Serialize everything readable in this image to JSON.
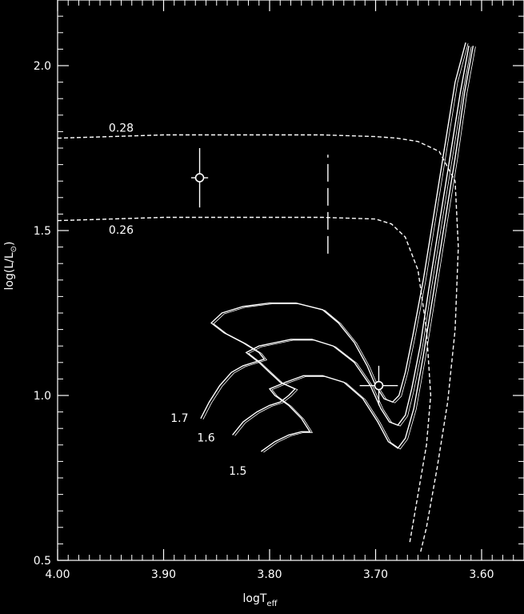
{
  "chart_data": {
    "type": "line",
    "xlabel": "logT",
    "xlabel_sub": "eff",
    "ylabel": "log(L/L",
    "ylabel_sub": "⊙",
    "ylabel_close": ")",
    "xlim": [
      4.0,
      3.55
    ],
    "ylim": [
      0.5,
      2.2
    ],
    "x_ticks": [
      {
        "value": 4.0,
        "label": "4.00"
      },
      {
        "value": 3.9,
        "label": "3.90"
      },
      {
        "value": 3.8,
        "label": "3.80"
      },
      {
        "value": 3.7,
        "label": "3.70"
      },
      {
        "value": 3.6,
        "label": "3.60"
      }
    ],
    "y_ticks": [
      {
        "value": 0.5,
        "label": "0.5"
      },
      {
        "value": 1.0,
        "label": "1.0"
      },
      {
        "value": 1.5,
        "label": "1.5"
      },
      {
        "value": 2.0,
        "label": "2.0"
      }
    ],
    "grid": false,
    "colors": {
      "background": "#000000",
      "foreground": "#ffffff"
    },
    "series": [
      {
        "name": "1.7",
        "style": "solid",
        "points": [
          [
            3.865,
            0.93
          ],
          [
            3.857,
            0.98
          ],
          [
            3.847,
            1.03
          ],
          [
            3.836,
            1.07
          ],
          [
            3.825,
            1.09
          ],
          [
            3.815,
            1.1
          ],
          [
            3.805,
            1.11
          ],
          [
            3.81,
            1.13
          ],
          [
            3.825,
            1.16
          ],
          [
            3.843,
            1.19
          ],
          [
            3.855,
            1.22
          ],
          [
            3.845,
            1.25
          ],
          [
            3.825,
            1.27
          ],
          [
            3.8,
            1.28
          ],
          [
            3.775,
            1.28
          ],
          [
            3.75,
            1.26
          ],
          [
            3.735,
            1.22
          ],
          [
            3.72,
            1.16
          ],
          [
            3.708,
            1.09
          ],
          [
            3.7,
            1.03
          ],
          [
            3.692,
            0.99
          ],
          [
            3.684,
            0.98
          ],
          [
            3.678,
            1.0
          ],
          [
            3.672,
            1.07
          ],
          [
            3.665,
            1.18
          ],
          [
            3.655,
            1.35
          ],
          [
            3.645,
            1.55
          ],
          [
            3.635,
            1.75
          ],
          [
            3.625,
            1.95
          ],
          [
            3.615,
            2.07
          ]
        ]
      },
      {
        "name": "1.6",
        "style": "solid",
        "points": [
          [
            3.835,
            0.88
          ],
          [
            3.825,
            0.92
          ],
          [
            3.812,
            0.95
          ],
          [
            3.8,
            0.97
          ],
          [
            3.79,
            0.98
          ],
          [
            3.782,
            1.0
          ],
          [
            3.776,
            1.02
          ],
          [
            3.79,
            1.04
          ],
          [
            3.8,
            1.07
          ],
          [
            3.81,
            1.1
          ],
          [
            3.822,
            1.13
          ],
          [
            3.81,
            1.15
          ],
          [
            3.795,
            1.16
          ],
          [
            3.78,
            1.17
          ],
          [
            3.76,
            1.17
          ],
          [
            3.74,
            1.15
          ],
          [
            3.72,
            1.1
          ],
          [
            3.705,
            1.03
          ],
          [
            3.695,
            0.96
          ],
          [
            3.687,
            0.92
          ],
          [
            3.679,
            0.91
          ],
          [
            3.672,
            0.94
          ],
          [
            3.666,
            1.02
          ],
          [
            3.658,
            1.15
          ],
          [
            3.65,
            1.32
          ],
          [
            3.64,
            1.52
          ],
          [
            3.63,
            1.72
          ],
          [
            3.62,
            1.92
          ],
          [
            3.612,
            2.06
          ]
        ]
      },
      {
        "name": "1.5",
        "style": "solid",
        "points": [
          [
            3.808,
            0.83
          ],
          [
            3.795,
            0.86
          ],
          [
            3.782,
            0.88
          ],
          [
            3.77,
            0.89
          ],
          [
            3.762,
            0.89
          ],
          [
            3.77,
            0.93
          ],
          [
            3.782,
            0.97
          ],
          [
            3.795,
            1.0
          ],
          [
            3.8,
            1.02
          ],
          [
            3.785,
            1.04
          ],
          [
            3.768,
            1.06
          ],
          [
            3.75,
            1.06
          ],
          [
            3.73,
            1.04
          ],
          [
            3.712,
            0.99
          ],
          [
            3.698,
            0.92
          ],
          [
            3.688,
            0.86
          ],
          [
            3.679,
            0.84
          ],
          [
            3.672,
            0.87
          ],
          [
            3.664,
            0.96
          ],
          [
            3.655,
            1.12
          ],
          [
            3.645,
            1.32
          ],
          [
            3.635,
            1.52
          ],
          [
            3.625,
            1.72
          ],
          [
            3.616,
            1.92
          ],
          [
            3.608,
            2.06
          ]
        ]
      },
      {
        "name": "0.28",
        "style": "dashed",
        "points": [
          [
            4.0,
            1.78
          ],
          [
            3.95,
            1.785
          ],
          [
            3.9,
            1.79
          ],
          [
            3.85,
            1.79
          ],
          [
            3.8,
            1.79
          ],
          [
            3.75,
            1.79
          ],
          [
            3.7,
            1.785
          ],
          [
            3.68,
            1.78
          ],
          [
            3.66,
            1.77
          ],
          [
            3.64,
            1.74
          ],
          [
            3.625,
            1.65
          ],
          [
            3.622,
            1.45
          ],
          [
            3.625,
            1.2
          ],
          [
            3.632,
            0.98
          ],
          [
            3.642,
            0.78
          ],
          [
            3.652,
            0.6
          ],
          [
            3.658,
            0.52
          ]
        ]
      },
      {
        "name": "0.26",
        "style": "dashed",
        "points": [
          [
            4.0,
            1.53
          ],
          [
            3.95,
            1.535
          ],
          [
            3.9,
            1.54
          ],
          [
            3.85,
            1.54
          ],
          [
            3.8,
            1.54
          ],
          [
            3.75,
            1.54
          ],
          [
            3.7,
            1.535
          ],
          [
            3.685,
            1.52
          ],
          [
            3.672,
            1.48
          ],
          [
            3.66,
            1.38
          ],
          [
            3.652,
            1.2
          ],
          [
            3.648,
            1.0
          ],
          [
            3.652,
            0.85
          ],
          [
            3.66,
            0.7
          ],
          [
            3.668,
            0.55
          ]
        ]
      }
    ],
    "labels": [
      {
        "text": "0.28",
        "x": 3.94,
        "y": 1.8
      },
      {
        "text": "0.26",
        "x": 3.94,
        "y": 1.49
      },
      {
        "text": "1.7",
        "x": 3.885,
        "y": 0.92
      },
      {
        "text": "1.6",
        "x": 3.86,
        "y": 0.86
      },
      {
        "text": "1.5",
        "x": 3.83,
        "y": 0.76
      }
    ],
    "data_points": [
      {
        "x": 3.866,
        "y": 1.66,
        "xerr": 0.008,
        "yerr": 0.09
      },
      {
        "x": 3.697,
        "y": 1.03,
        "xerr": 0.018,
        "yerr": 0.06
      }
    ],
    "vertical_dashed_line": {
      "x": 3.745,
      "y_from": 1.43,
      "y_to": 1.73
    }
  }
}
